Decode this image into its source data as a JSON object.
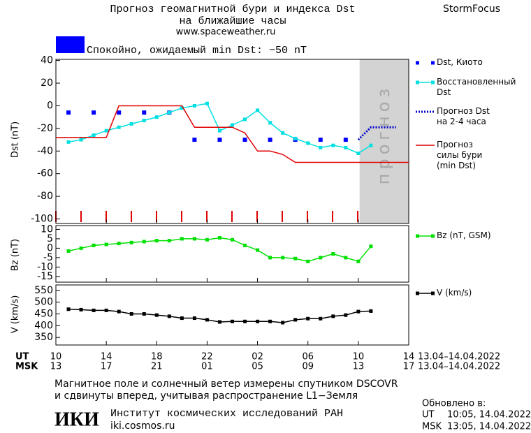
{
  "header": {
    "title_1": "Прогноз геомагнитной бури и индекса Dst",
    "title_2": "на ближайшие часы",
    "url": "www.spaceweather.ru",
    "brand": "StormFocus",
    "status": "Спокойно, ожидаемый min Dst: −50 nT",
    "status_color": "#0000ff"
  },
  "x_axis": {
    "xlim": [
      0,
      28
    ],
    "ut_label": "UT",
    "msk_label": "MSK",
    "ut_range": "13.04–14.04.2022",
    "msk_range": "13.04–14.04.2022",
    "ut_ticks": [
      {
        "value": 0,
        "label": "10"
      },
      {
        "value": 4,
        "label": "14"
      },
      {
        "value": 8,
        "label": "18"
      },
      {
        "value": 12,
        "label": "22"
      },
      {
        "value": 16,
        "label": "02"
      },
      {
        "value": 20,
        "label": "06"
      },
      {
        "value": 24,
        "label": "10"
      },
      {
        "value": 28,
        "label": "14"
      }
    ],
    "msk_ticks": [
      {
        "value": 0,
        "label": "13"
      },
      {
        "value": 4,
        "label": "17"
      },
      {
        "value": 8,
        "label": "21"
      },
      {
        "value": 12,
        "label": "01"
      },
      {
        "value": 16,
        "label": "05"
      },
      {
        "value": 20,
        "label": "09"
      },
      {
        "value": 24,
        "label": "13"
      },
      {
        "value": 28,
        "label": "17"
      }
    ]
  },
  "chart_data": [
    {
      "type": "line",
      "ylabel": "Dst (nT)",
      "ylim": [
        -104,
        41
      ],
      "yticks": [
        40,
        20,
        0,
        -20,
        -40,
        -60,
        -80,
        -100
      ],
      "shaded_x": [
        24.1,
        28
      ],
      "shaded_label": "прогноз",
      "series": [
        {
          "name": "Dst, Киото",
          "color": "#0000ff",
          "marker": "square",
          "line": false,
          "x": [
            1,
            3,
            5,
            7,
            9,
            11,
            13,
            15,
            17,
            19,
            21,
            23
          ],
          "values": [
            -6,
            -6,
            -6,
            -6,
            -6,
            -30,
            -30,
            -30,
            -30,
            -30,
            -30,
            -30
          ]
        },
        {
          "name": "Восстановленный\nDst",
          "color": "#00e0e0",
          "marker": "square",
          "line": true,
          "x": [
            1,
            2,
            3,
            4,
            5,
            6,
            7,
            8,
            9,
            10,
            11,
            12,
            13,
            14,
            15,
            16,
            17,
            18,
            19,
            20,
            21,
            22,
            23,
            24,
            25
          ],
          "values": [
            -32,
            -30,
            -26,
            -22,
            -19,
            -16,
            -13,
            -10,
            -6,
            -2,
            0,
            2,
            -22,
            -17,
            -12,
            -4,
            -15,
            -24,
            -29,
            -33,
            -37,
            -35,
            -37,
            -42,
            -35
          ]
        },
        {
          "name": "Прогноз Dst\nна 2-4 часа",
          "color": "#0000cc",
          "dash": "dotted",
          "line": true,
          "x": [
            24,
            25,
            27
          ],
          "values": [
            -30,
            -19,
            -19
          ]
        },
        {
          "name": "Прогноз\nсилы бури\n(min Dst)",
          "color": "#e00000",
          "line": true,
          "x": [
            0,
            4,
            5,
            10,
            11,
            14,
            15,
            16,
            17,
            18,
            19,
            28
          ],
          "values": [
            -28,
            -28,
            0,
            0,
            -19,
            -19,
            -24,
            -40,
            -40,
            -43,
            -50,
            -50
          ]
        }
      ]
    },
    {
      "type": "line",
      "ylabel": "Bz (nT)",
      "ylim": [
        -18,
        12
      ],
      "yticks": [
        10,
        5,
        0,
        -5,
        -10,
        -15
      ],
      "series": [
        {
          "name": "Bz (nT, GSM)",
          "color": "#00e000",
          "marker": "square",
          "line": true,
          "x": [
            1,
            2,
            3,
            4,
            5,
            6,
            7,
            8,
            9,
            10,
            11,
            12,
            13,
            14,
            15,
            16,
            17,
            18,
            19,
            20,
            21,
            22,
            23,
            24,
            25
          ],
          "values": [
            -1.5,
            0,
            1.5,
            2,
            2.5,
            3,
            3.5,
            4,
            4,
            5,
            5,
            4.5,
            5.5,
            4.5,
            1.5,
            -1,
            -5,
            -5,
            -5.5,
            -7,
            -5,
            -3,
            -5,
            -7,
            1
          ]
        }
      ]
    },
    {
      "type": "line",
      "ylabel": "V (km/s)",
      "ylim": [
        318,
        573
      ],
      "yticks": [
        550,
        500,
        450,
        400,
        350
      ],
      "series": [
        {
          "name": "V (km/s)",
          "color": "#000000",
          "marker": "square",
          "line": true,
          "x": [
            1,
            2,
            3,
            4,
            5,
            6,
            7,
            8,
            9,
            10,
            11,
            12,
            13,
            14,
            15,
            16,
            17,
            18,
            19,
            20,
            21,
            22,
            23,
            24,
            25
          ],
          "values": [
            470,
            468,
            465,
            465,
            460,
            450,
            450,
            445,
            440,
            432,
            432,
            425,
            416,
            418,
            418,
            418,
            418,
            413,
            425,
            430,
            430,
            440,
            445,
            460,
            462
          ]
        }
      ]
    }
  ],
  "footer": {
    "note_1": "Магнитное поле и солнечный ветер измерены спутником DSCOVR",
    "note_2": "и сдвинуты вперед, учитывая распространение L1−Земля",
    "updated": "Обновлено в:",
    "ut_label": "UT",
    "ut_time": "10:05, 14.04.2022",
    "msk_label": "MSK",
    "msk_time": "13:05, 14.04.2022",
    "logo": "ИКИ",
    "institute": "Институт космических исследований РАН",
    "site": "iki.cosmos.ru"
  }
}
